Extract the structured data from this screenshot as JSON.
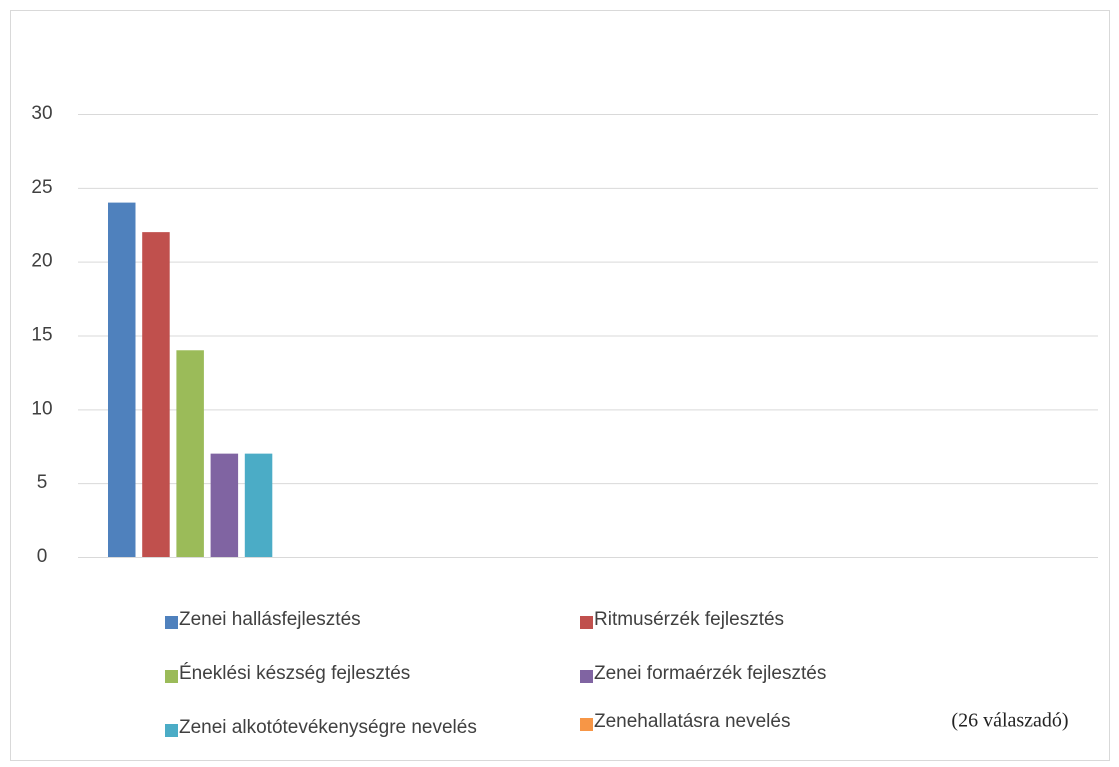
{
  "chart_data": {
    "type": "bar",
    "categories": [
      "Zenei hallásfejlesztés",
      "Ritmusérzék fejlesztés",
      "Éneklési készség fejlesztés",
      "Zenei formaérzék fejlesztés",
      "Zenei alkotótevékenységre nevelés",
      "Zenehallatásra nevelés"
    ],
    "values": [
      24,
      22,
      14,
      7,
      7,
      0
    ],
    "colors": [
      "#4f81bd",
      "#c0504d",
      "#9bbb59",
      "#8064a2",
      "#4bacc6",
      "#f79646"
    ],
    "ylim": [
      0,
      30
    ],
    "yticks": [
      0,
      5,
      10,
      15,
      20,
      25,
      30
    ],
    "grid": true,
    "annotation": "(26 válaszadó)"
  }
}
